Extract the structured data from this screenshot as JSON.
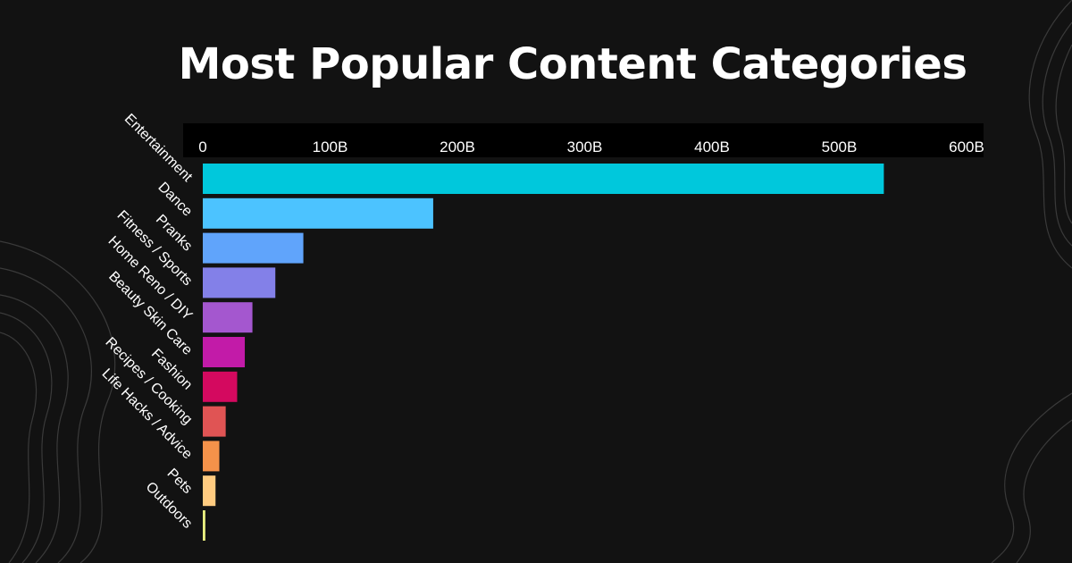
{
  "page": {
    "background": "#121212"
  },
  "chart_data": {
    "type": "bar",
    "orientation": "horizontal",
    "title": "Most Popular Content Categories",
    "xlabel": "",
    "ylabel": "",
    "xlim": [
      0,
      600
    ],
    "ticks": [
      0,
      100,
      200,
      300,
      400,
      500,
      600
    ],
    "tick_labels": [
      "0",
      "100B",
      "200B",
      "300B",
      "400B",
      "500B",
      "600B"
    ],
    "axis_position": "top",
    "grid": false,
    "categories": [
      "Entertainment",
      "Dance",
      "Pranks",
      "Fitness / Sports",
      "Home Reno / DIY",
      "Beauty Skin Care",
      "Fashion",
      "Recipes / Cooking",
      "Life Hacks / Advice",
      "Pets",
      "Outdoors"
    ],
    "values": [
      535,
      181,
      79,
      57,
      39,
      33,
      27,
      18,
      13,
      10,
      2
    ],
    "colors": [
      "#00c8dc",
      "#4cc3ff",
      "#60a4fb",
      "#8380e8",
      "#a457cf",
      "#c21ba8",
      "#d4095f",
      "#e05454",
      "#f5924a",
      "#ffcb80",
      "#e9ef80"
    ]
  }
}
